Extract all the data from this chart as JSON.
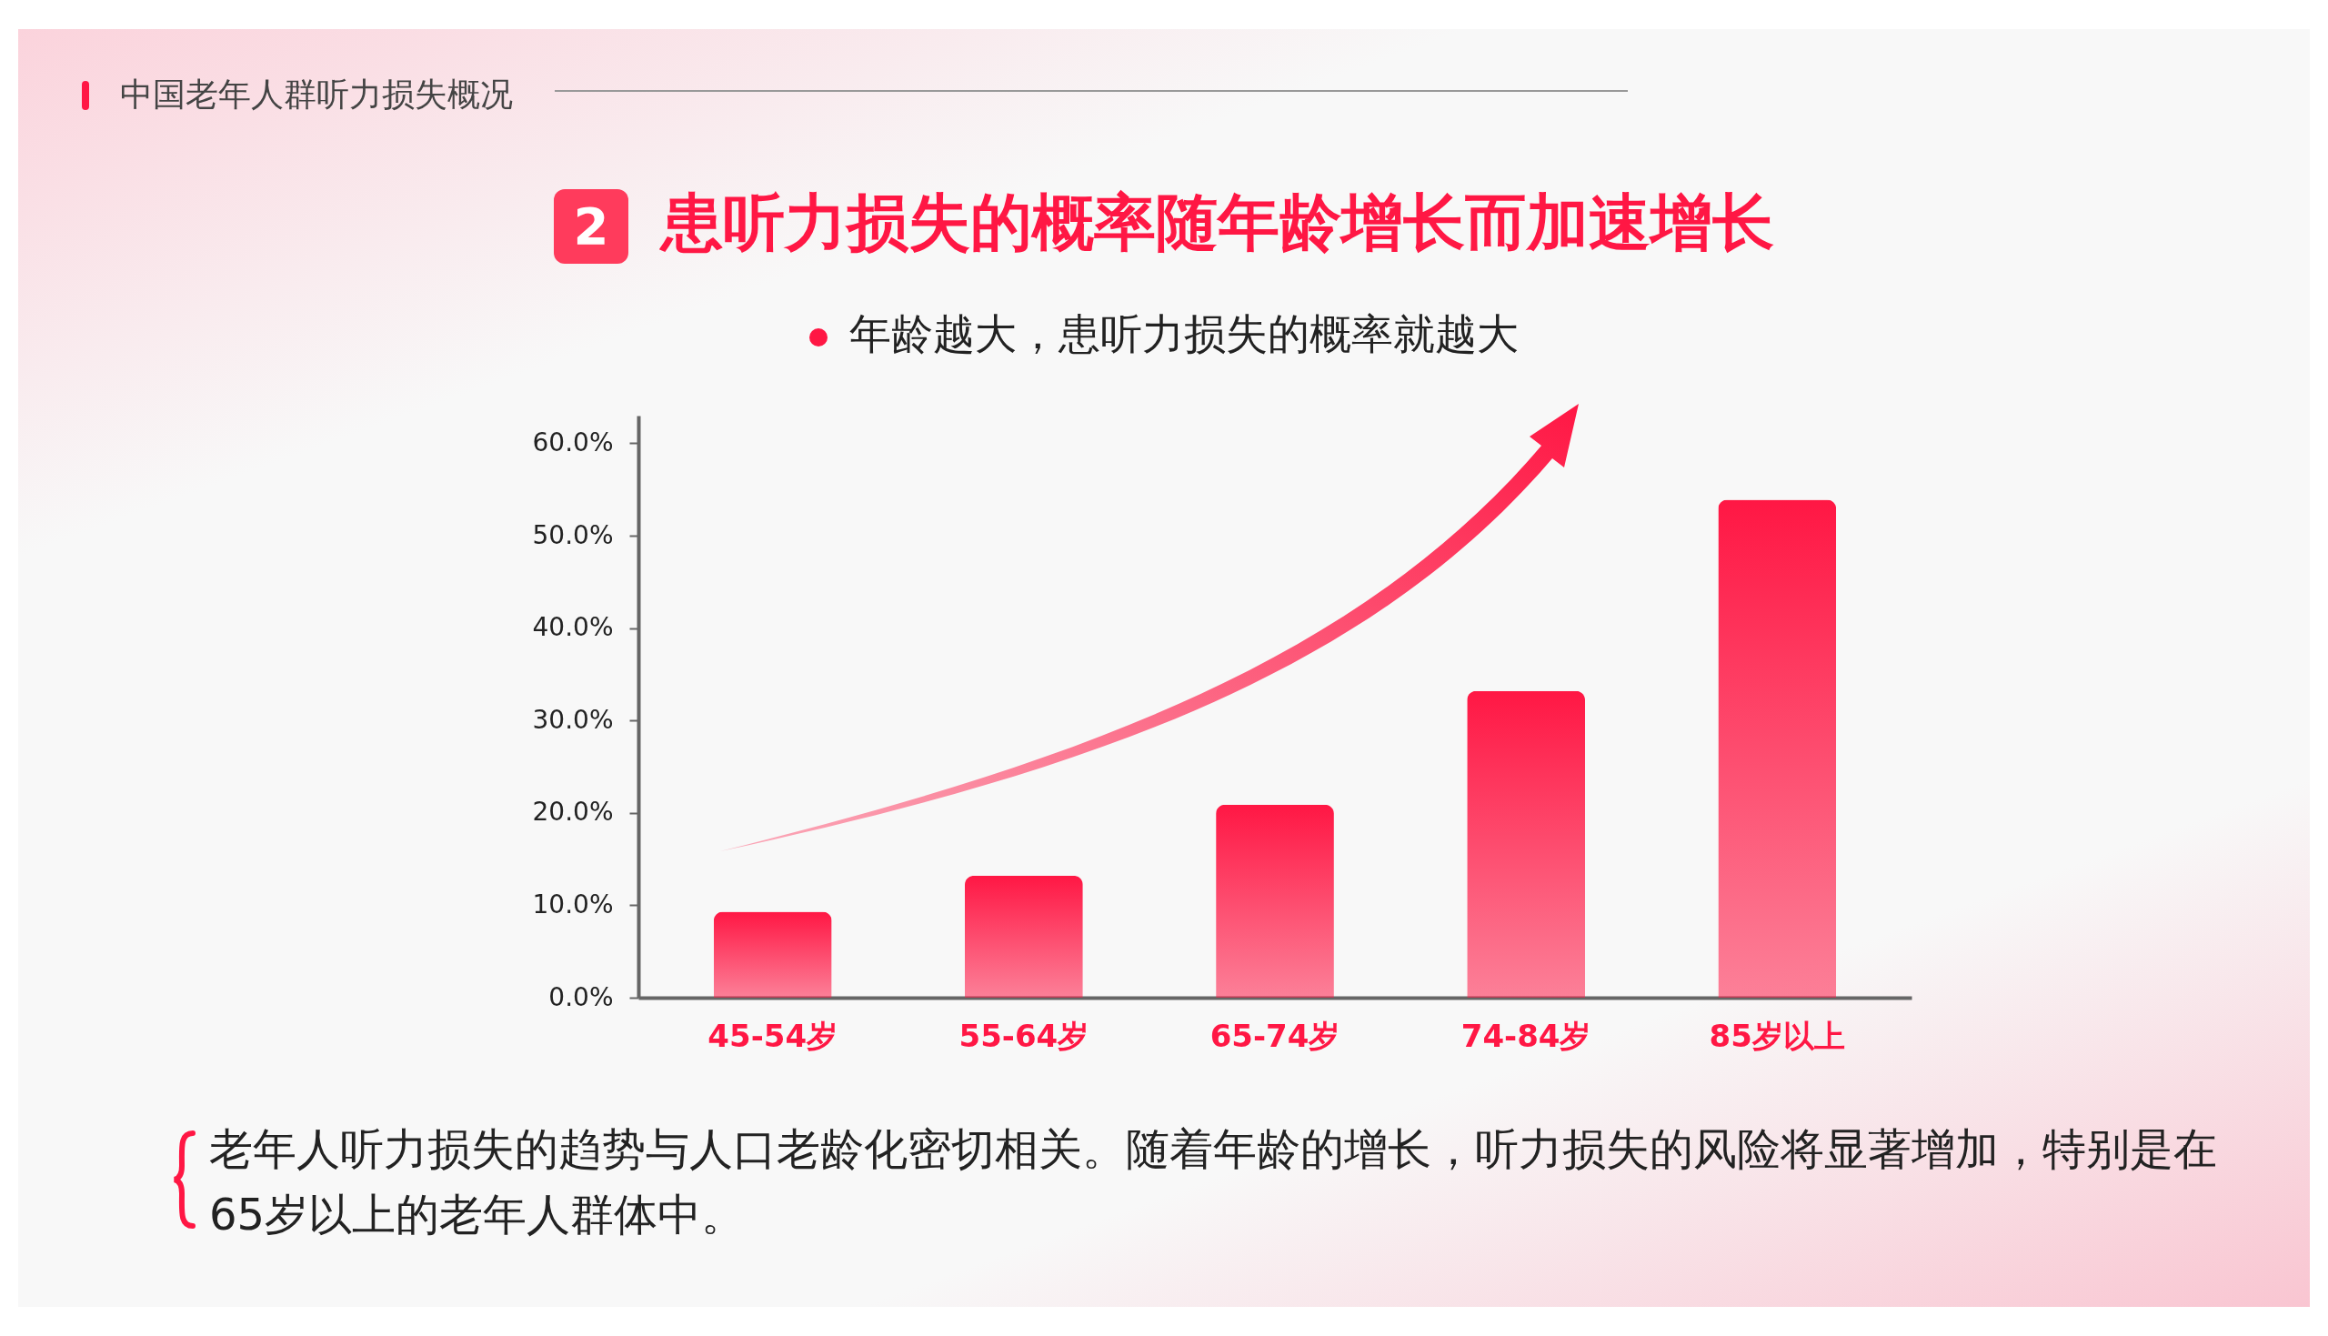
{
  "chart_data": {
    "type": "bar",
    "title": "患听力损失的概率随年龄增长而加速增长",
    "subtitle": "年龄越大，患听力损失的概率就越大",
    "annotations": [
      "中国老年人群听力损失概况",
      "2",
      "老年人听力损失的趋势与人口老龄化密切相关。随着年龄的增长，听力损失的风险将显著增加，特别是在65岁以上的老年人群体中。"
    ],
    "categories": [
      "45-54岁",
      "55-64岁",
      "65-74岁",
      "74-84岁",
      "85岁以上"
    ],
    "values": [
      9.3,
      13.2,
      20.9,
      33.2,
      53.9
    ],
    "color": "#ff1744",
    "ylim": [
      0,
      63
    ],
    "yticks": [
      {
        "value": 0,
        "label": "0.0%"
      },
      {
        "value": 10,
        "label": "10.0%"
      },
      {
        "value": 20,
        "label": "20.0%"
      },
      {
        "value": 30,
        "label": "30.0%"
      },
      {
        "value": 40,
        "label": "40.0%"
      },
      {
        "value": 50,
        "label": "50.0%"
      },
      {
        "value": 60,
        "label": "60.0%"
      }
    ],
    "grid": false,
    "legend": false
  }
}
